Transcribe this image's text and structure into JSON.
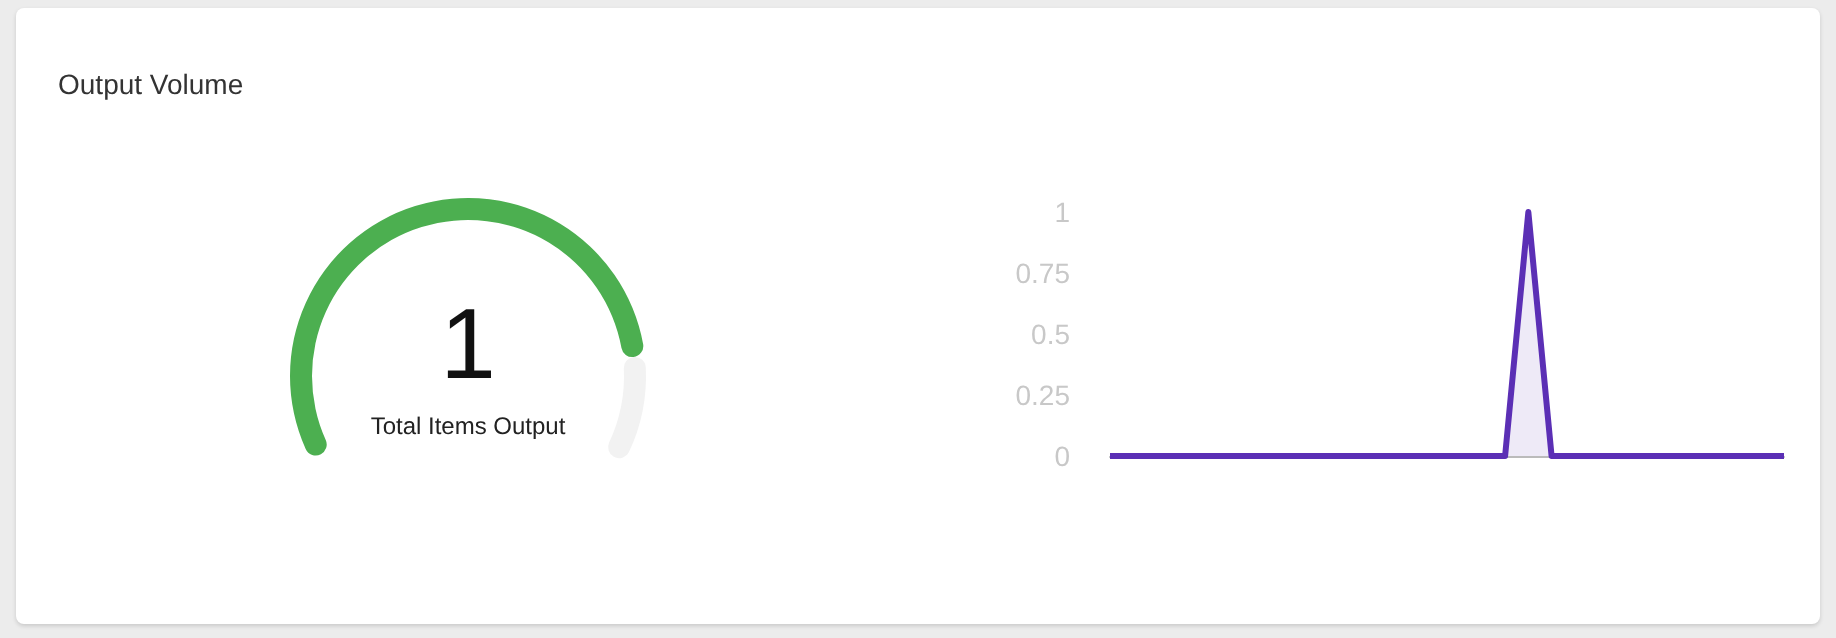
{
  "chart_data": [
    {
      "type": "donut",
      "title": "Output Volume",
      "categories": [
        null,
        null
      ],
      "values": [
        85,
        15
      ],
      "colors": [
        "#4caf50",
        "#f2f2f2"
      ],
      "annotations": [
        "1",
        "Total Items Output"
      ]
    },
    {
      "type": "area",
      "categories": [
        null,
        null,
        null,
        null,
        null,
        null,
        null,
        null,
        null,
        null,
        null,
        null,
        null,
        null,
        null,
        null,
        null,
        null,
        null,
        null,
        null,
        null,
        null,
        null,
        null,
        null,
        null,
        null,
        null,
        null
      ],
      "series": [
        {
          "color": "#5b2fb5",
          "values": [
            0,
            0,
            0,
            0,
            0,
            0,
            0,
            0,
            0,
            0,
            0,
            0,
            0,
            0,
            0,
            0,
            0,
            0,
            1,
            0,
            0,
            0,
            0,
            0,
            0,
            0,
            0,
            0,
            0,
            0
          ]
        }
      ],
      "ylim": [
        0,
        1
      ],
      "yticks": [
        0,
        0.25,
        0.5,
        0.75,
        1
      ],
      "grid": false,
      "marker": "none"
    }
  ]
}
